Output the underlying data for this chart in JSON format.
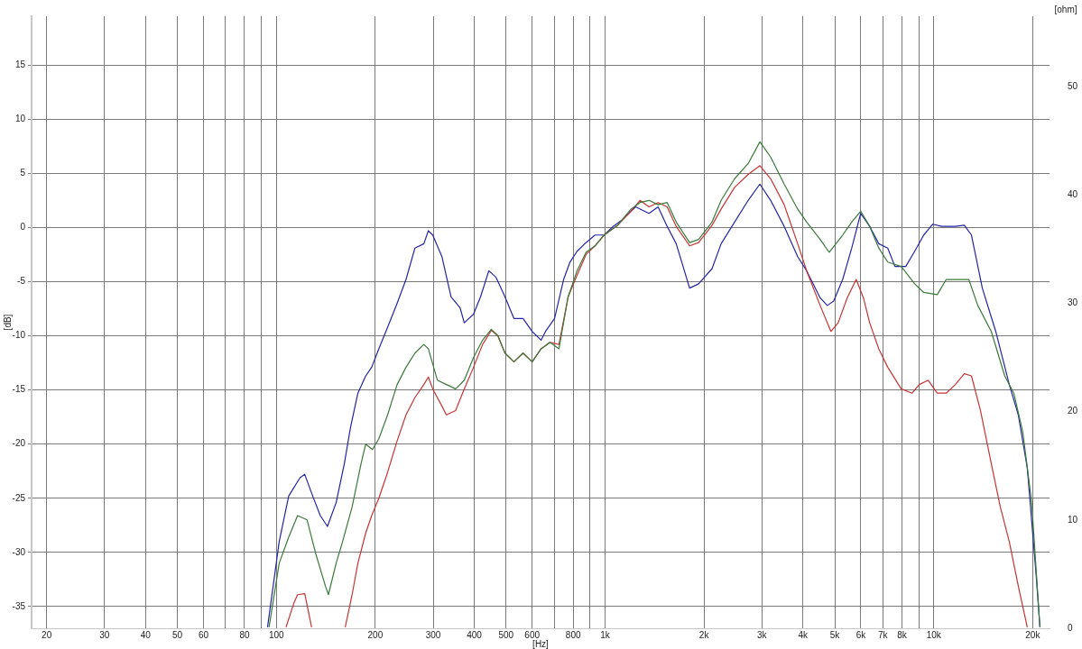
{
  "chart_data": {
    "type": "line",
    "xlabel": "[Hz]",
    "ylabel": "[dB]",
    "y2label": "[ohm]",
    "log": "x",
    "grid": true,
    "xlim": [
      18,
      22500
    ],
    "ylim": [
      -37,
      19.5
    ],
    "y2lim": [
      0,
      56.5
    ],
    "xticks": [
      20,
      30,
      40,
      50,
      60,
      {
        "value": 70,
        "label": null
      },
      80,
      {
        "value": 90,
        "label": null
      },
      100,
      200,
      300,
      400,
      500,
      600,
      {
        "value": 700,
        "label": null
      },
      800,
      {
        "value": 900,
        "label": null
      },
      {
        "value": 1000,
        "label": "1k"
      },
      {
        "value": 2000,
        "label": "2k"
      },
      {
        "value": 3000,
        "label": "3k"
      },
      {
        "value": 4000,
        "label": "4k"
      },
      {
        "value": 5000,
        "label": "5k"
      },
      {
        "value": 6000,
        "label": "6k"
      },
      {
        "value": 7000,
        "label": "7k"
      },
      {
        "value": 8000,
        "label": "8k"
      },
      {
        "value": 9000,
        "label": null
      },
      {
        "value": 10000,
        "label": "10k"
      },
      {
        "value": 20000,
        "label": "20k"
      }
    ],
    "yticks": [
      -35,
      -30,
      -25,
      -20,
      -15,
      -10,
      -5,
      0,
      5,
      10,
      15
    ],
    "y2ticks": [
      0,
      10,
      20,
      30,
      40,
      50
    ],
    "series": [
      {
        "color": "#3a7a3a",
        "x": [
          95,
          102,
          109,
          116,
          124,
          132,
          141,
          144,
          152,
          159,
          170,
          181,
          187,
          196,
          205,
          218,
          233,
          248,
          264,
          281,
          290,
          309,
          329,
          351,
          373,
          398,
          424,
          451,
          472,
          496,
          528,
          563,
          600,
          639,
          680,
          724,
          772,
          822,
          875,
          932,
          993,
          1092,
          1200,
          1277,
          1361,
          1450,
          1545,
          1646,
          1808,
          1926,
          2116,
          2255,
          2478,
          2725,
          2958,
          3190,
          3507,
          3855,
          4105,
          4512,
          4808,
          5284,
          5630,
          5994,
          6384,
          6803,
          7244,
          7962,
          8750,
          9322,
          10248,
          10914,
          12000,
          12782,
          13614,
          14964,
          16440,
          17520,
          18660,
          19860,
          21040
        ],
        "values": [
          -36.9,
          -31.0,
          -28.6,
          -26.6,
          -27.0,
          -30.2,
          -33.1,
          -33.9,
          -31.0,
          -29.0,
          -25.8,
          -21.8,
          -20.0,
          -20.5,
          -19.5,
          -17.3,
          -14.5,
          -12.9,
          -11.6,
          -10.8,
          -11.2,
          -14.1,
          -14.5,
          -14.9,
          -14.1,
          -12.0,
          -10.4,
          -9.4,
          -10.0,
          -11.6,
          -12.4,
          -11.6,
          -12.4,
          -11.2,
          -10.6,
          -11.2,
          -6.4,
          -4.0,
          -2.3,
          -1.7,
          -0.7,
          0.2,
          1.7,
          2.3,
          2.5,
          2.1,
          2.3,
          0.5,
          -1.4,
          -1.1,
          0.5,
          2.5,
          4.5,
          5.9,
          7.9,
          6.5,
          4.0,
          1.7,
          0.5,
          -1.1,
          -2.3,
          -0.7,
          0.5,
          1.5,
          0.1,
          -1.9,
          -3.2,
          -3.6,
          -5.2,
          -6.0,
          -6.2,
          -4.8,
          -4.8,
          -4.8,
          -7.2,
          -9.6,
          -13.7,
          -15.3,
          -18.9,
          -25.4,
          -36.9
        ]
      },
      {
        "color": "#c83434",
        "x": [
          107,
          113,
          116,
          122,
          128,
          135,
          162,
          170,
          177,
          187,
          195,
          205,
          218,
          233,
          248,
          264,
          281,
          290,
          299,
          319,
          329,
          351,
          373,
          398,
          424,
          451,
          472,
          496,
          528,
          563,
          600,
          639,
          680,
          724,
          772,
          822,
          875,
          932,
          993,
          1092,
          1200,
          1277,
          1361,
          1450,
          1545,
          1646,
          1808,
          1926,
          2116,
          2255,
          2478,
          2725,
          2958,
          3190,
          3507,
          3855,
          4105,
          4512,
          4866,
          5118,
          5454,
          5808,
          6110,
          6384,
          6803,
          7244,
          7962,
          8590,
          9038,
          9618,
          10248,
          10914,
          11630,
          12388,
          13024,
          13870,
          14964,
          15940,
          16974,
          18080,
          19258
        ],
        "values": [
          -36.9,
          -34.7,
          -33.9,
          -33.8,
          -36.9,
          null,
          -36.9,
          -33.9,
          -31.0,
          -28.2,
          -26.6,
          -25.0,
          -22.6,
          -19.7,
          -17.3,
          -15.7,
          -14.5,
          -13.8,
          -14.9,
          -16.5,
          -17.3,
          -16.9,
          -14.9,
          -12.9,
          -10.8,
          -9.5,
          -10.0,
          -11.6,
          -12.4,
          -11.6,
          -12.4,
          -11.2,
          -10.6,
          -10.8,
          -6.4,
          -4.4,
          -2.5,
          -1.7,
          -0.7,
          0.2,
          1.5,
          2.5,
          1.9,
          2.3,
          1.9,
          0.1,
          -1.7,
          -1.4,
          0.2,
          1.7,
          3.7,
          4.9,
          5.7,
          4.5,
          2.1,
          -1.5,
          -4.0,
          -7.2,
          -9.6,
          -8.8,
          -6.5,
          -4.8,
          -6.5,
          -8.8,
          -11.2,
          -12.9,
          -14.9,
          -15.3,
          -14.5,
          -14.1,
          -15.3,
          -15.3,
          -14.5,
          -13.5,
          -13.7,
          -16.9,
          -21.8,
          -25.8,
          -29.0,
          -33.1,
          -36.9
        ]
      },
      {
        "color": "#2424a8",
        "x": [
          94,
          102,
          109,
          118,
          122,
          129,
          136,
          143,
          152,
          161,
          168,
          177,
          187,
          195,
          205,
          218,
          233,
          248,
          264,
          281,
          290,
          299,
          319,
          340,
          362,
          373,
          398,
          418,
          443,
          466,
          496,
          528,
          563,
          600,
          639,
          659,
          702,
          748,
          782,
          822,
          875,
          932,
          993,
          1058,
          1127,
          1239,
          1361,
          1450,
          1545,
          1646,
          1808,
          1926,
          2116,
          2255,
          2478,
          2725,
          2958,
          3190,
          3507,
          3855,
          4105,
          4512,
          4744,
          4960,
          5284,
          5630,
          5994,
          6384,
          6803,
          7244,
          7622,
          8220,
          8750,
          9322,
          9930,
          10570,
          11630,
          12388,
          13024,
          14052,
          15440,
          16974,
          18080,
          19258,
          20514,
          21040
        ],
        "values": [
          -36.9,
          -29.0,
          -24.8,
          -23.1,
          -22.8,
          -24.8,
          -26.6,
          -27.6,
          -25.4,
          -21.8,
          -18.5,
          -15.3,
          -13.7,
          -12.9,
          -11.2,
          -9.2,
          -7.0,
          -4.8,
          -1.9,
          -1.5,
          -0.3,
          -0.7,
          -2.7,
          -6.4,
          -7.4,
          -8.8,
          -8.0,
          -6.4,
          -4.0,
          -4.6,
          -6.4,
          -8.4,
          -8.4,
          -9.6,
          -10.4,
          -9.6,
          -8.4,
          -4.8,
          -3.2,
          -2.2,
          -1.4,
          -0.7,
          -0.7,
          0.1,
          0.7,
          1.9,
          1.3,
          1.9,
          0.1,
          -1.5,
          -5.6,
          -5.2,
          -3.8,
          -1.5,
          0.5,
          2.5,
          4.0,
          2.5,
          0.1,
          -2.7,
          -4.0,
          -6.5,
          -7.2,
          -6.8,
          -4.8,
          -1.9,
          1.3,
          0.1,
          -1.5,
          -1.9,
          -3.6,
          -3.6,
          -2.2,
          -0.7,
          0.3,
          0.1,
          0.1,
          0.2,
          -0.7,
          -5.6,
          -9.6,
          -14.5,
          -17.3,
          -22.2,
          -32.3,
          -36.9
        ]
      }
    ]
  }
}
